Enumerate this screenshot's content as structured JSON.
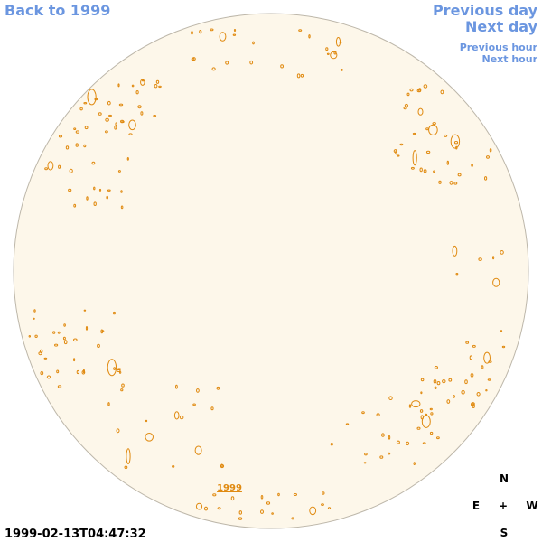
{
  "nav": {
    "back": "Back to 1999",
    "previous_day": "Previous day",
    "next_day": "Next day",
    "previous_hour": "Previous hour",
    "next_hour": "Next hour"
  },
  "map": {
    "year_label": "1999",
    "timestamp": "1999-02-13T04:47:32"
  },
  "compass": {
    "north": "N",
    "east": "E",
    "center": "+",
    "west": "W",
    "south": "S"
  }
}
